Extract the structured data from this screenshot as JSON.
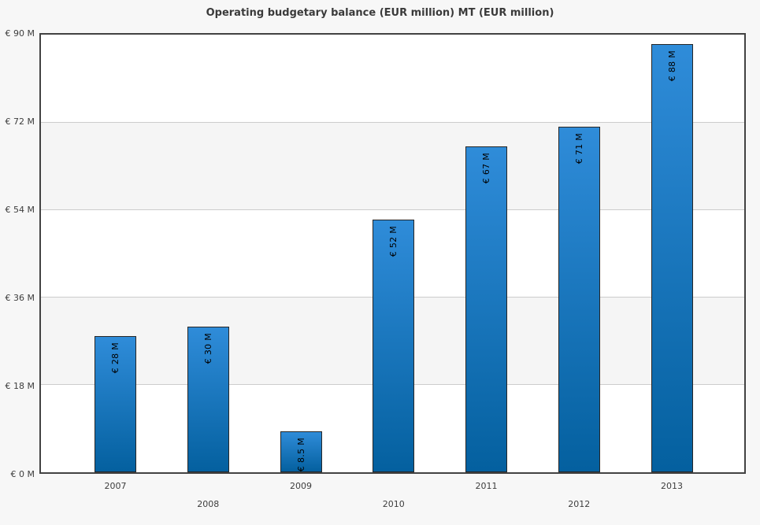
{
  "chart_data": {
    "type": "bar",
    "title": "Operating budgetary balance (EUR million) MT (EUR million)",
    "categories": [
      "2007",
      "2008",
      "2009",
      "2010",
      "2011",
      "2012",
      "2013"
    ],
    "values": [
      28,
      30,
      8.5,
      52,
      67,
      71,
      88
    ],
    "bar_labels": [
      "€ 28 M",
      "€ 30 M",
      "€ 8.5 M",
      "€ 52 M",
      "€ 67 M",
      "€ 71 M",
      "€ 88 M"
    ],
    "y_ticks": [
      {
        "value": 0,
        "label": "€ 0 M"
      },
      {
        "value": 18,
        "label": "€ 18 M"
      },
      {
        "value": 36,
        "label": "€ 36 M"
      },
      {
        "value": 54,
        "label": "€ 54 M"
      },
      {
        "value": 72,
        "label": "€ 72 M"
      },
      {
        "value": 90,
        "label": "€ 90 M"
      }
    ],
    "ylim": [
      0,
      90
    ],
    "xlabel": "",
    "ylabel": "",
    "grid": true,
    "legend": false,
    "alternating_bands": true,
    "x_labels_staggered": true,
    "colors": {
      "bar_gradient_top": "#2f8cd9",
      "bar_gradient_bottom": "#04609f",
      "bar_border": "#262626",
      "plot_border": "#424242",
      "grid_line": "#cccccc",
      "band_alt": "#f5f5f5",
      "plot_background": "#ffffff",
      "page_background": "#f7f7f7",
      "title_color": "#3a3a3a",
      "axis_label_color": "#3d3d3d",
      "bar_label_color": "#000000"
    }
  }
}
